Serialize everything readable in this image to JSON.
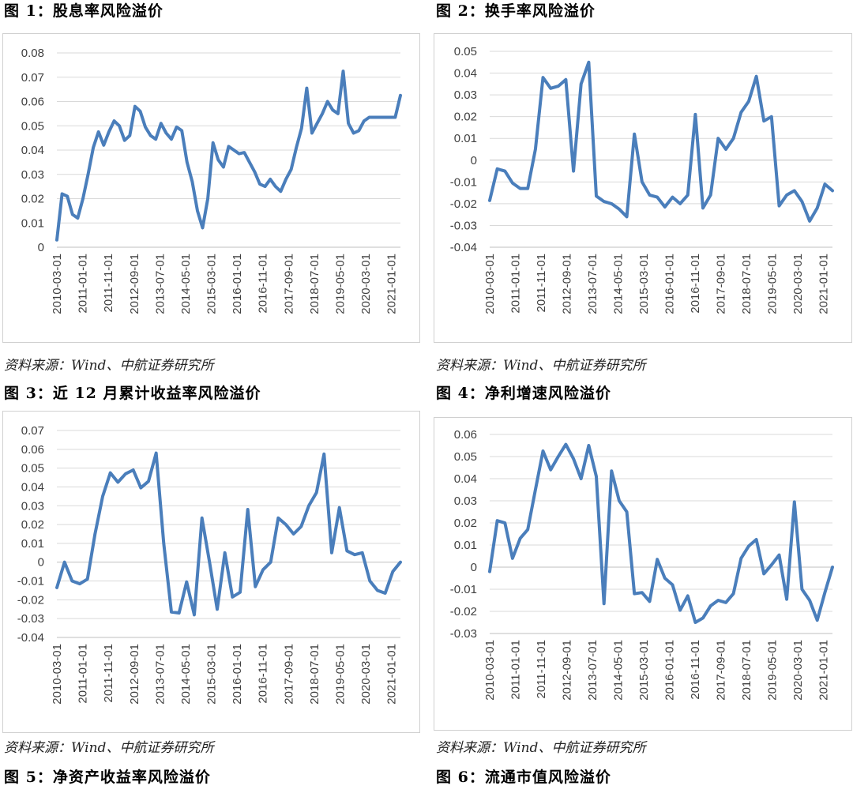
{
  "colors": {
    "line": "#4a7ebb",
    "grid": "#d9d9d9",
    "tick_text": "#404040"
  },
  "source_text": "资料来源：Wind、中航证券研究所",
  "next_title": "图  5：净资产收益率风险溢价",
  "next_title2": "图  6：流通市值风险溢价",
  "figures": [
    {
      "title": "图  1：股息率风险溢价",
      "source": "资料来源：Wind、中航证券研究所",
      "chart_data": {
        "type": "line",
        "x": [
          "2010-03-01",
          "2010-05-01",
          "2010-07-01",
          "2010-09-01",
          "2010-11-01",
          "2011-01-01",
          "2011-03-01",
          "2011-05-01",
          "2011-07-01",
          "2011-09-01",
          "2011-11-01",
          "2012-01-01",
          "2012-03-01",
          "2012-05-01",
          "2012-07-01",
          "2012-09-01",
          "2012-11-01",
          "2013-01-01",
          "2013-03-01",
          "2013-05-01",
          "2013-07-01",
          "2013-09-01",
          "2013-11-01",
          "2014-01-01",
          "2014-03-01",
          "2014-05-01",
          "2014-07-01",
          "2014-09-01",
          "2014-11-01",
          "2015-01-01",
          "2015-03-01",
          "2015-05-01",
          "2015-07-01",
          "2015-09-01",
          "2015-11-01",
          "2016-01-01",
          "2016-03-01",
          "2016-05-01",
          "2016-07-01",
          "2016-09-01",
          "2016-11-01",
          "2017-01-01",
          "2017-03-01",
          "2017-05-01",
          "2017-07-01",
          "2017-09-01",
          "2017-11-01",
          "2018-01-01",
          "2018-03-01",
          "2018-05-01",
          "2018-07-01",
          "2018-09-01",
          "2018-11-01",
          "2019-01-01",
          "2019-03-01",
          "2019-05-01",
          "2019-07-01",
          "2019-09-01",
          "2019-11-01",
          "2020-01-01",
          "2020-03-01",
          "2020-05-01",
          "2020-07-01",
          "2020-09-01",
          "2020-11-01",
          "2021-01-01",
          "2021-03-01"
        ],
        "y": [
          0.003,
          0.022,
          0.021,
          0.0135,
          0.012,
          0.02,
          0.03,
          0.041,
          0.0475,
          0.042,
          0.0475,
          0.052,
          0.05,
          0.044,
          0.046,
          0.058,
          0.056,
          0.0495,
          0.046,
          0.0445,
          0.051,
          0.047,
          0.0445,
          0.0495,
          0.048,
          0.035,
          0.027,
          0.015,
          0.008,
          0.02,
          0.043,
          0.036,
          0.033,
          0.0415,
          0.04,
          0.0385,
          0.039,
          0.035,
          0.031,
          0.026,
          0.025,
          0.028,
          0.025,
          0.023,
          0.028,
          0.032,
          0.041,
          0.049,
          0.0655,
          0.047,
          0.051,
          0.055,
          0.06,
          0.0565,
          0.055,
          0.0725,
          0.051,
          0.047,
          0.048,
          0.052,
          0.0535,
          0.0535,
          0.0535,
          0.0535,
          0.0535,
          0.0535,
          0.0625
        ],
        "x_ticks": [
          "2010-03-01",
          "2011-01-01",
          "2011-11-01",
          "2012-09-01",
          "2013-07-01",
          "2014-05-01",
          "2015-03-01",
          "2016-01-01",
          "2016-11-01",
          "2017-09-01",
          "2018-07-01",
          "2019-05-01",
          "2020-03-01",
          "2021-01-01"
        ],
        "y_ticks": [
          "0",
          "0.01",
          "0.02",
          "0.03",
          "0.04",
          "0.05",
          "0.06",
          "0.07",
          "0.08"
        ],
        "ylim": [
          0,
          0.08
        ]
      }
    },
    {
      "title": "图  2：换手率风险溢价",
      "source": "资料来源：Wind、中航证券研究所",
      "chart_data": {
        "type": "line",
        "y": [
          -0.0185,
          -0.004,
          -0.005,
          -0.0105,
          -0.013,
          -0.013,
          0.005,
          0.038,
          0.033,
          0.034,
          0.037,
          -0.005,
          0.035,
          0.045,
          -0.0165,
          -0.019,
          -0.02,
          -0.0225,
          -0.026,
          0.012,
          -0.01,
          -0.016,
          -0.017,
          -0.0215,
          -0.017,
          -0.02,
          -0.016,
          0.021,
          -0.022,
          -0.016,
          0.01,
          0.005,
          0.01,
          0.022,
          0.027,
          0.0385,
          0.018,
          0.02,
          -0.021,
          -0.016,
          -0.014,
          -0.019,
          -0.028,
          -0.022,
          -0.011,
          -0.014
        ],
        "x_ticks": [
          "2010-03-01",
          "2011-01-01",
          "2011-11-01",
          "2012-09-01",
          "2013-07-01",
          "2014-05-01",
          "2015-03-01",
          "2016-01-01",
          "2016-11-01",
          "2017-09-01",
          "2018-07-01",
          "2019-05-01",
          "2020-03-01",
          "2021-01-01"
        ],
        "y_ticks": [
          "-0.04",
          "-0.03",
          "-0.02",
          "-0.01",
          "0",
          "0.01",
          "0.02",
          "0.03",
          "0.04",
          "0.05"
        ],
        "ylim": [
          -0.04,
          0.05
        ]
      }
    },
    {
      "title": "图  3：近 12 月累计收益率风险溢价",
      "source": "资料来源：Wind、中航证券研究所",
      "chart_data": {
        "type": "line",
        "y": [
          -0.0135,
          0.0,
          -0.01,
          -0.0115,
          -0.009,
          0.015,
          0.035,
          0.0475,
          0.0425,
          0.047,
          0.049,
          0.0395,
          0.043,
          0.058,
          0.01,
          -0.0265,
          -0.027,
          -0.0105,
          -0.028,
          0.0235,
          0.0,
          -0.025,
          0.005,
          -0.0185,
          -0.016,
          0.028,
          -0.013,
          -0.004,
          0.0,
          0.0235,
          0.02,
          0.015,
          0.019,
          0.03,
          0.037,
          0.0575,
          0.005,
          0.029,
          0.006,
          0.004,
          0.005,
          -0.01,
          -0.015,
          -0.0165,
          -0.005,
          0.0
        ],
        "x_ticks": [
          "2010-03-01",
          "2011-01-01",
          "2011-11-01",
          "2012-09-01",
          "2013-07-01",
          "2014-05-01",
          "2015-03-01",
          "2016-01-01",
          "2016-11-01",
          "2017-09-01",
          "2018-07-01",
          "2019-05-01",
          "2020-03-01",
          "2021-01-01"
        ],
        "y_ticks": [
          "-0.04",
          "-0.03",
          "-0.02",
          "-0.01",
          "0",
          "0.01",
          "0.02",
          "0.03",
          "0.04",
          "0.05",
          "0.06",
          "0.07"
        ],
        "ylim": [
          -0.04,
          0.07
        ]
      }
    },
    {
      "title": "图  4：净利增速风险溢价",
      "source": "资料来源：Wind、中航证券研究所",
      "chart_data": {
        "type": "line",
        "y": [
          -0.002,
          0.021,
          0.02,
          0.004,
          0.013,
          0.017,
          0.035,
          0.0525,
          0.044,
          0.05,
          0.0555,
          0.049,
          0.04,
          0.055,
          0.041,
          -0.0165,
          0.0435,
          0.03,
          0.025,
          -0.012,
          -0.0115,
          -0.0155,
          0.0035,
          -0.005,
          -0.008,
          -0.0195,
          -0.013,
          -0.025,
          -0.023,
          -0.0175,
          -0.015,
          -0.016,
          -0.012,
          0.004,
          0.0095,
          0.0125,
          -0.003,
          0.001,
          0.0055,
          -0.0145,
          0.0295,
          -0.01,
          -0.015,
          -0.024,
          -0.0115,
          0.0
        ],
        "x_ticks": [
          "2010-03-01",
          "2011-01-01",
          "2011-11-01",
          "2012-09-01",
          "2013-07-01",
          "2014-05-01",
          "2015-03-01",
          "2016-01-01",
          "2016-11-01",
          "2017-09-01",
          "2018-07-01",
          "2019-05-01",
          "2020-03-01",
          "2021-01-01"
        ],
        "y_ticks": [
          "-0.03",
          "-0.02",
          "-0.01",
          "0",
          "0.01",
          "0.02",
          "0.03",
          "0.04",
          "0.05",
          "0.06"
        ],
        "ylim": [
          -0.03,
          0.06
        ]
      }
    }
  ]
}
